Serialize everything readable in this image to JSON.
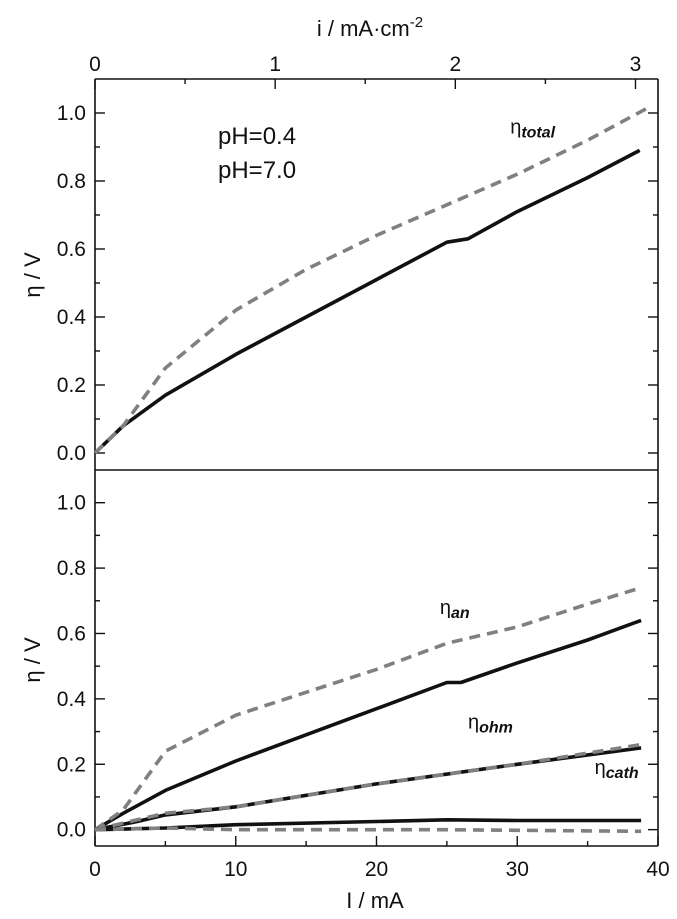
{
  "chart_data": {
    "type": "line",
    "top_axis": {
      "label_main": "i / mA·cm",
      "label_sup": "-2",
      "ticks": [
        0,
        1,
        2,
        3
      ],
      "range": [
        0,
        3.125
      ]
    },
    "bottom_axis": {
      "label": "I / mA",
      "ticks": [
        0,
        10,
        20,
        30,
        40
      ],
      "range": [
        0,
        40
      ]
    },
    "legend": [
      {
        "label": "pH=0.4",
        "color": "#111111"
      },
      {
        "label": "pH=7.0",
        "color": "#808080"
      }
    ],
    "colors": {
      "ph04": "#111111",
      "ph70": "#808080"
    },
    "panels": [
      {
        "ylabel": "η / V",
        "ylim": [
          -0.05,
          1.1
        ],
        "yticks": [
          "0.0",
          "0.2",
          "0.4",
          "0.6",
          "0.8",
          "1.0"
        ],
        "series": [
          {
            "label_sub": "total",
            "ph": "pH=0.4",
            "style": "solid",
            "x": [
              0,
              2,
              5,
              10,
              15,
              20,
              25,
              26.5,
              30,
              35,
              38.7
            ],
            "y": [
              0,
              0.08,
              0.17,
              0.29,
              0.4,
              0.51,
              0.62,
              0.63,
              0.71,
              0.81,
              0.89
            ]
          },
          {
            "label_sub": "total",
            "ph": "pH=7.0",
            "style": "dashed",
            "x": [
              0,
              2,
              5,
              10,
              15,
              20,
              25,
              30,
              35,
              39.5
            ],
            "y": [
              0,
              0.08,
              0.25,
              0.42,
              0.54,
              0.64,
              0.73,
              0.82,
              0.92,
              1.02
            ]
          }
        ],
        "annotations": [
          {
            "text_main": "η",
            "text_sub": "total",
            "x": 29.5,
            "y": 0.94
          }
        ]
      },
      {
        "ylabel": "η / V",
        "ylim": [
          -0.05,
          1.1
        ],
        "yticks": [
          "0.0",
          "0.2",
          "0.4",
          "0.6",
          "0.8",
          "1.0"
        ],
        "series": [
          {
            "label_sub": "an",
            "ph": "pH=0.4",
            "style": "solid",
            "x": [
              0,
              2,
              5,
              10,
              15,
              20,
              25,
              26,
              30,
              35,
              38.8
            ],
            "y": [
              0,
              0.05,
              0.12,
              0.21,
              0.29,
              0.37,
              0.45,
              0.45,
              0.51,
              0.58,
              0.64
            ]
          },
          {
            "label_sub": "an",
            "ph": "pH=7.0",
            "style": "dashed",
            "x": [
              0,
              2,
              5,
              10,
              15,
              20,
              25,
              26,
              30,
              35,
              38.8
            ],
            "y": [
              0,
              0.06,
              0.24,
              0.35,
              0.42,
              0.49,
              0.57,
              0.58,
              0.62,
              0.69,
              0.74
            ]
          },
          {
            "label_sub": "ohm",
            "ph": "pH=0.4",
            "style": "solid",
            "x": [
              0,
              3,
              5,
              10,
              20,
              30,
              38.8
            ],
            "y": [
              0,
              0.025,
              0.045,
              0.07,
              0.14,
              0.2,
              0.25
            ]
          },
          {
            "label_sub": "ohm",
            "ph": "pH=7.0",
            "style": "dashed",
            "x": [
              0,
              3,
              5,
              10,
              20,
              30,
              38.8
            ],
            "y": [
              0,
              0.03,
              0.05,
              0.07,
              0.14,
              0.2,
              0.26
            ]
          },
          {
            "label_sub": "cath",
            "ph": "pH=0.4",
            "style": "solid",
            "x": [
              0,
              5,
              10,
              20,
              25,
              30,
              38.8
            ],
            "y": [
              0,
              0.005,
              0.015,
              0.025,
              0.03,
              0.028,
              0.028
            ]
          },
          {
            "label_sub": "cath",
            "ph": "pH=7.0",
            "style": "dashed",
            "x": [
              0,
              5,
              10,
              20,
              25,
              30,
              38.8
            ],
            "y": [
              0,
              0.005,
              0.0,
              0.0,
              0.0,
              -0.002,
              -0.005
            ]
          }
        ],
        "annotations": [
          {
            "text_main": "η",
            "text_sub": "an",
            "x": 24.5,
            "y": 0.66
          },
          {
            "text_main": "η",
            "text_sub": "ohm",
            "x": 26.5,
            "y": 0.31
          },
          {
            "text_main": "η",
            "text_sub": "cath",
            "x": 35.5,
            "y": 0.17
          }
        ]
      }
    ]
  }
}
